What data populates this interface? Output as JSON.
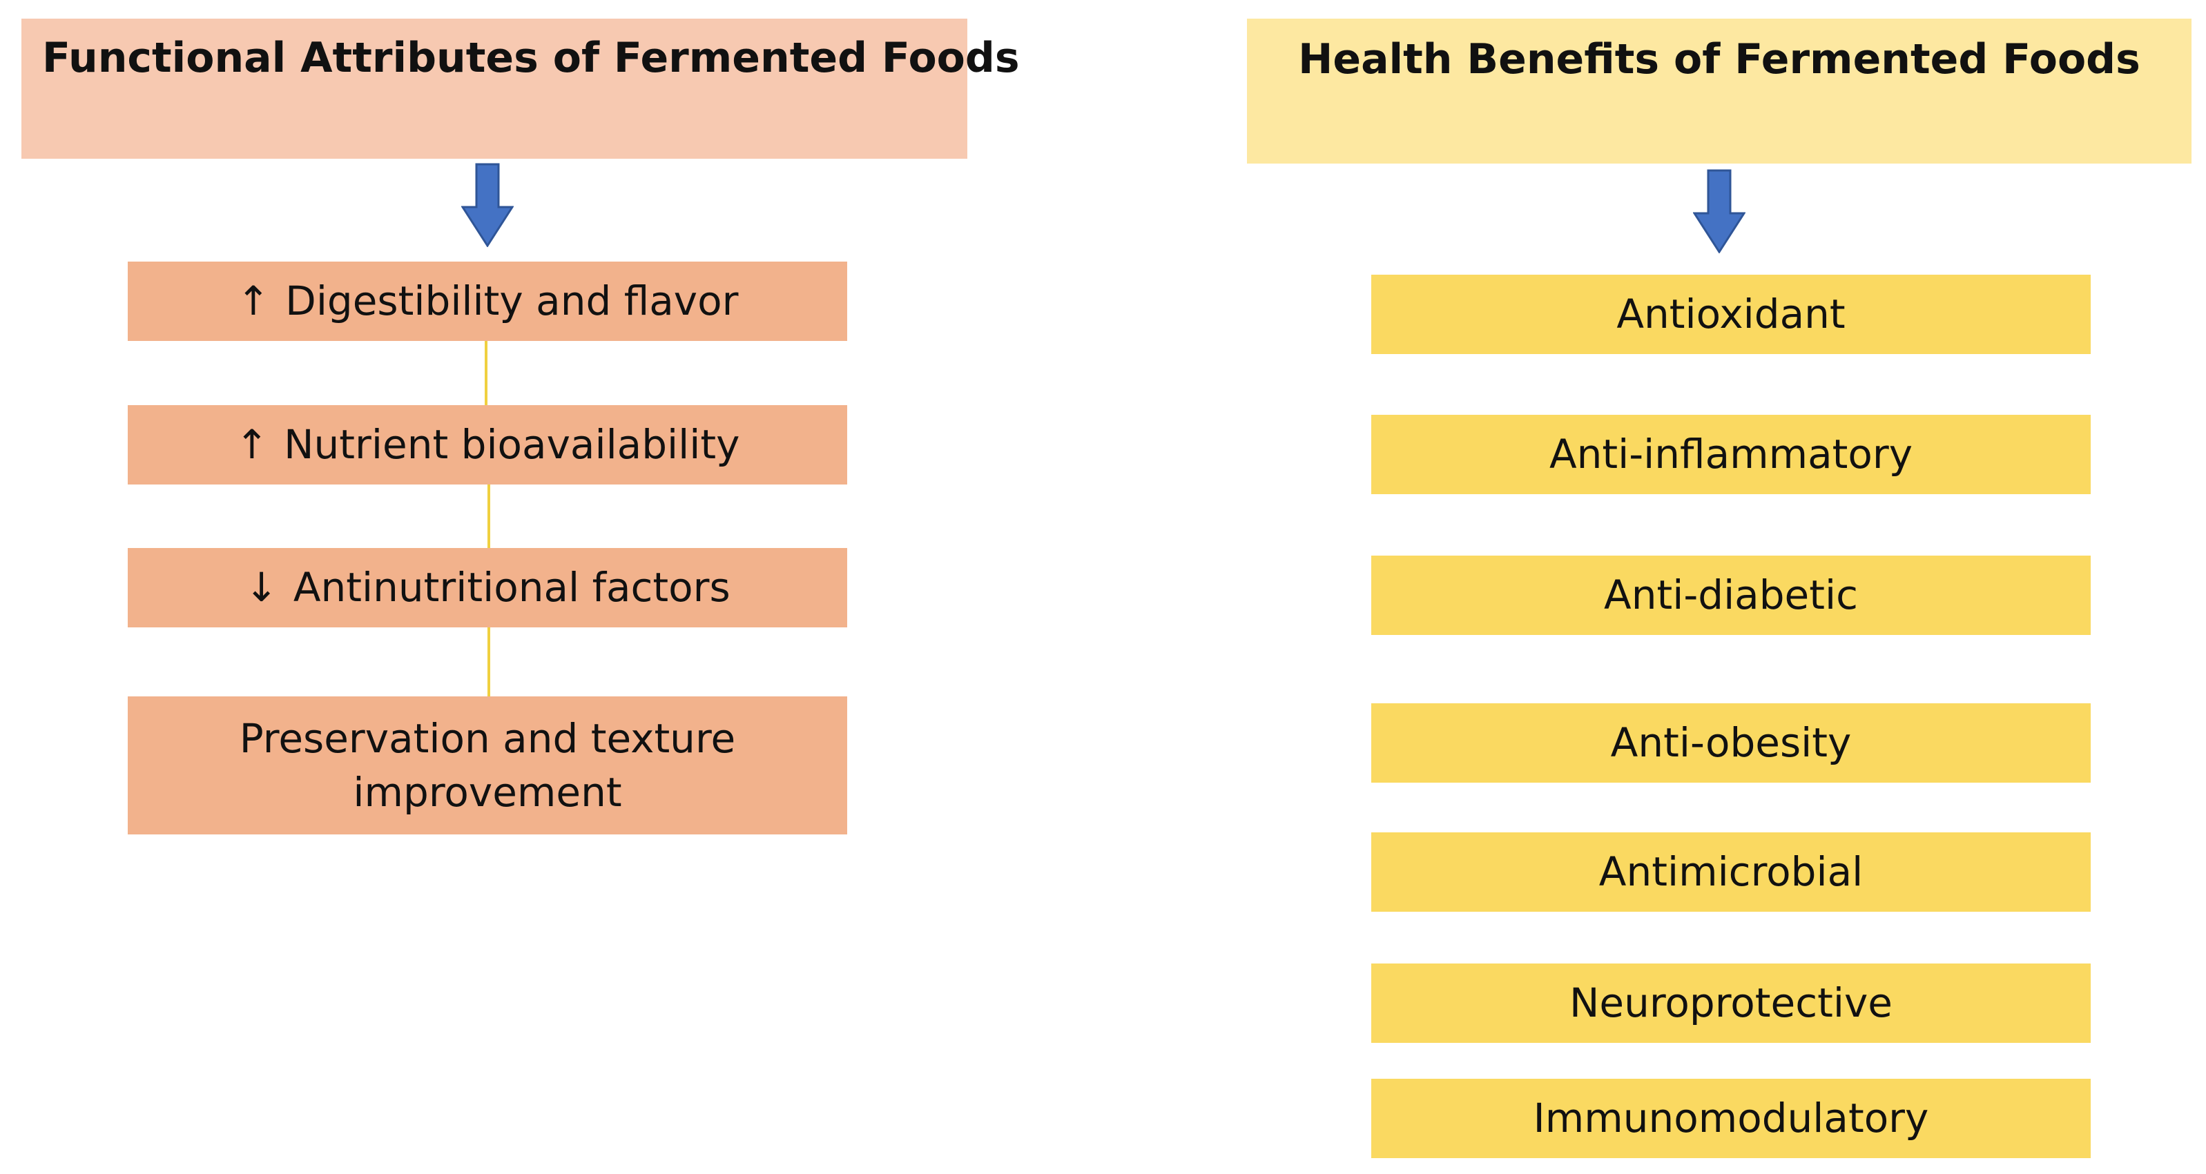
{
  "colors": {
    "left_header": "#f7c9b1",
    "right_header": "#fde8a1",
    "left_box": "#f2b28c",
    "right_box": "#fad961",
    "arrow": "#4472c4",
    "connector": "#f0d040"
  },
  "functional": {
    "title": "Functional Attributes of Fermented Foods",
    "items": [
      {
        "glyph": "↑",
        "label": "Digestibility and flavor"
      },
      {
        "glyph": "↑",
        "label": "Nutrient bioavailability"
      },
      {
        "glyph": "↓",
        "label": "Antinutritional factors"
      },
      {
        "glyph": "",
        "label": "Preservation and texture improvement"
      }
    ]
  },
  "health": {
    "title": "Health Benefits of Fermented Foods",
    "items": [
      "Antioxidant",
      "Anti-inflammatory",
      "Anti-diabetic",
      "Anti-obesity",
      "Antimicrobial",
      "Neuroprotective",
      "Immunomodulatory"
    ]
  }
}
